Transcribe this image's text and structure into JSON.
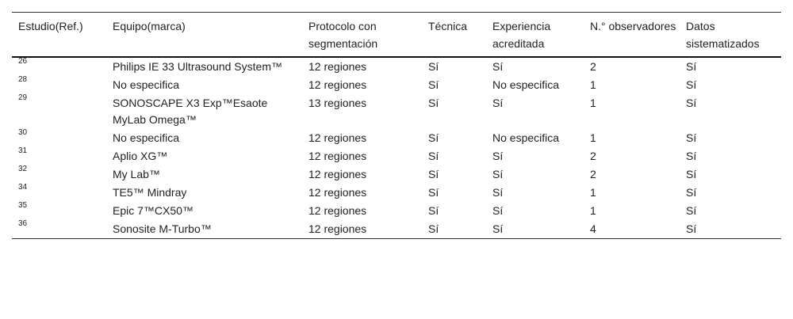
{
  "table": {
    "headers": [
      "Estudio(Ref.)",
      "Equipo(marca)",
      "Protocolo con segmentación",
      "Técnica",
      "Experiencia acreditada",
      "N.° observadores",
      "Datos sistematizados"
    ],
    "rows": [
      [
        "26",
        "Philips IE 33 Ultrasound System™",
        "12 regiones",
        "Sí",
        "Sí",
        "2",
        "Sí"
      ],
      [
        "28",
        "No especifica",
        "12 regiones",
        "Sí",
        "No especifica",
        "1",
        "Sí"
      ],
      [
        "29",
        "SONOSCAPE X3 Exp™Esaote MyLab Omega™",
        "13 regiones",
        "Sí",
        "Sí",
        "1",
        "Sí"
      ],
      [
        "30",
        "No especifica",
        "12 regiones",
        "Sí",
        "No especifica",
        "1",
        "Sí"
      ],
      [
        "31",
        "Aplio XG™",
        "12 regiones",
        "Sí",
        "Sí",
        "2",
        "Sí"
      ],
      [
        "32",
        "My Lab™",
        "12 regiones",
        "Sí",
        "Sí",
        "2",
        "Sí"
      ],
      [
        "34",
        "TE5™ Mindray",
        "12 regiones",
        "Sí",
        "Sí",
        "1",
        "Sí"
      ],
      [
        "35",
        "Epic 7™CX50™",
        "12 regiones",
        "Sí",
        "Sí",
        "1",
        "Sí"
      ],
      [
        "36",
        "Sonosite M-Turbo™",
        "12 regiones",
        "Sí",
        "Sí",
        "4",
        "Sí"
      ]
    ]
  }
}
